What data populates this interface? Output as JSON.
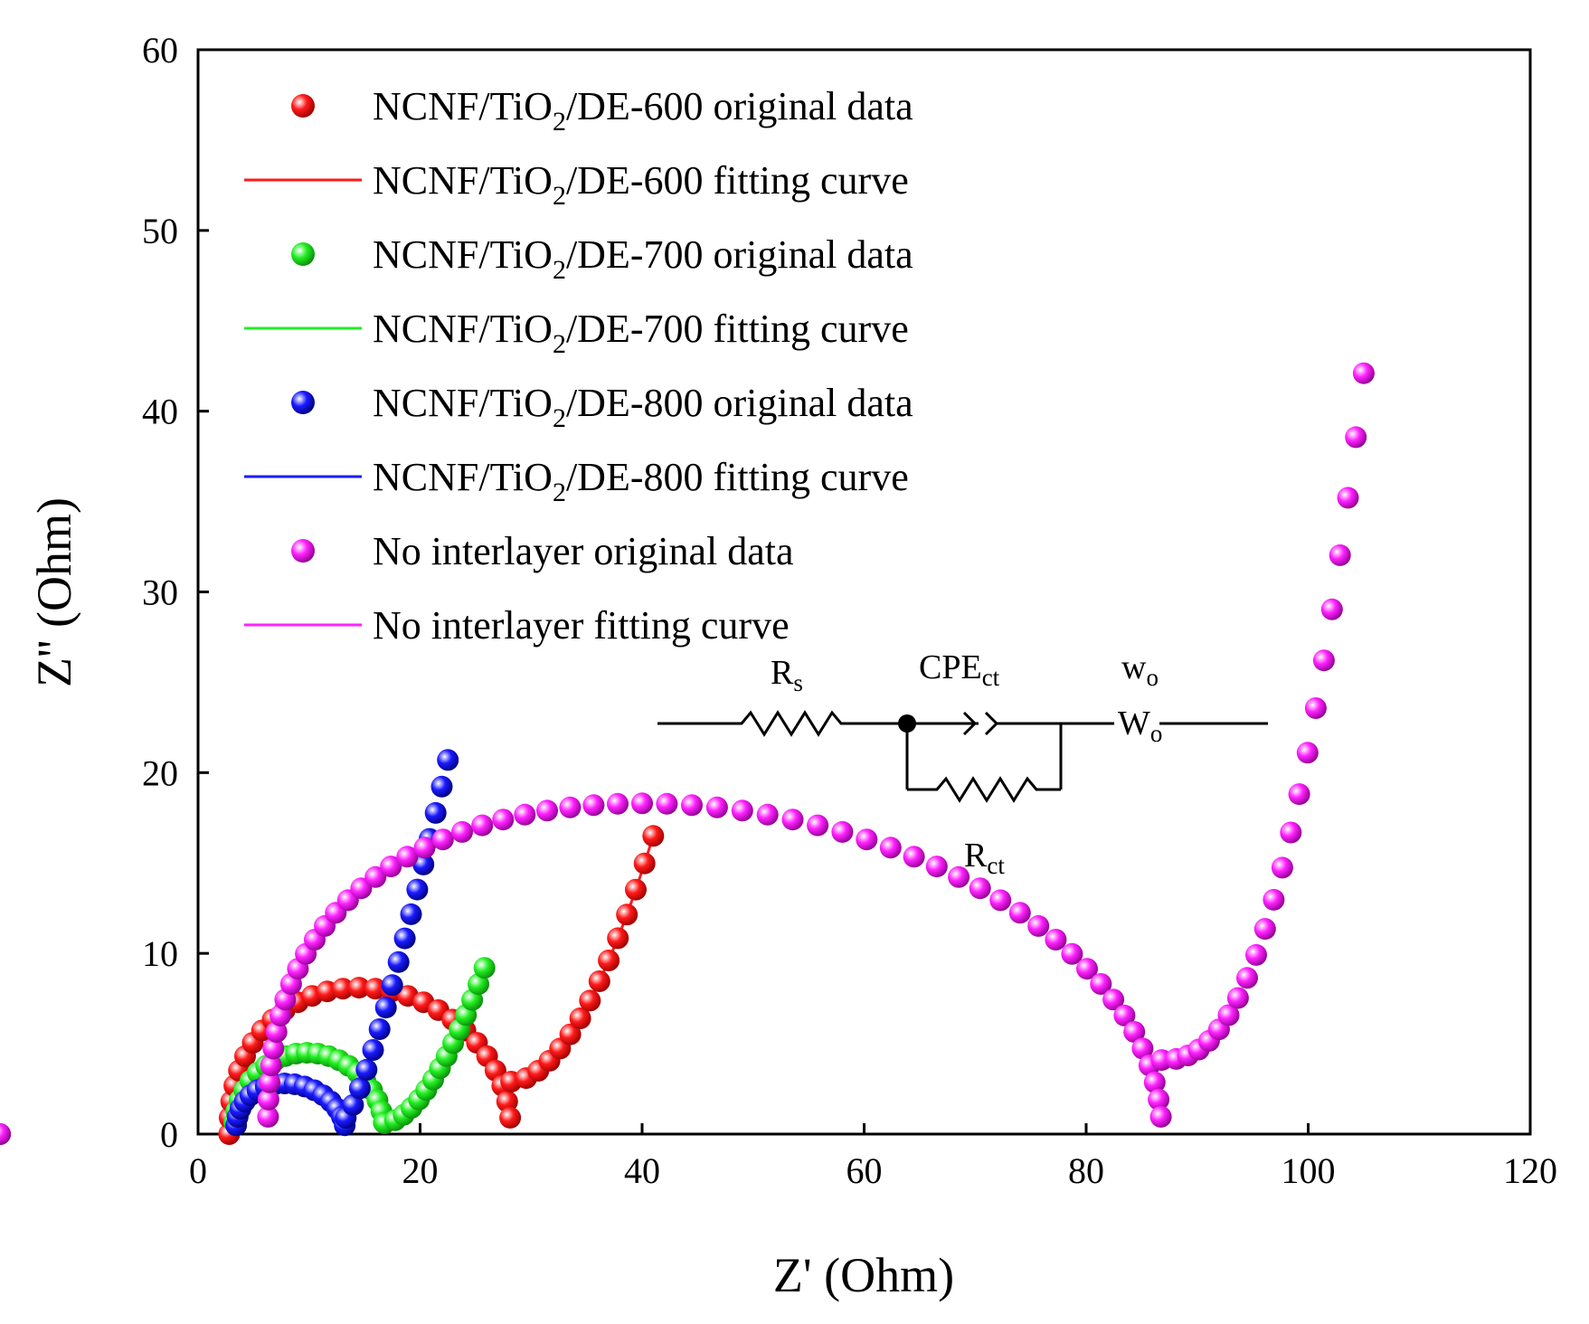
{
  "chart_data": {
    "type": "scatter",
    "title": "",
    "xlabel": "Z' (Ohm)",
    "ylabel": "Z'' (Ohm)",
    "xlim": [
      0,
      120
    ],
    "ylim": [
      0,
      60
    ],
    "xticks": [
      0,
      20,
      40,
      60,
      80,
      100,
      120
    ],
    "yticks": [
      0,
      10,
      20,
      30,
      40,
      50,
      60
    ],
    "xtick_labels": [
      "0",
      "20",
      "40",
      "60",
      "80",
      "100",
      "120"
    ],
    "ytick_labels": [
      "0",
      "10",
      "20",
      "30",
      "40",
      "50",
      "60"
    ],
    "grid": false,
    "legend_position": "top-left",
    "legend": [
      {
        "pre": "NCNF/TiO",
        "sub": "2",
        "post": "/DE-600 original data",
        "kind": "marker",
        "color": "#ff1a1a"
      },
      {
        "pre": "NCNF/TiO",
        "sub": "2",
        "post": "/DE-600 fitting curve",
        "kind": "line",
        "color": "#ff1a1a"
      },
      {
        "pre": "NCNF/TiO",
        "sub": "2",
        "post": "/DE-700 original data",
        "kind": "marker",
        "color": "#22ee22"
      },
      {
        "pre": "NCNF/TiO",
        "sub": "2",
        "post": "/DE-700 fitting curve",
        "kind": "line",
        "color": "#22ee22"
      },
      {
        "pre": "NCNF/TiO",
        "sub": "2",
        "post": "/DE-800 original data",
        "kind": "marker",
        "color": "#1a1aff"
      },
      {
        "pre": "NCNF/TiO",
        "sub": "2",
        "post": "/DE-800 fitting curve",
        "kind": "line",
        "color": "#1a1aff"
      },
      {
        "pre": "No interlayer original data",
        "sub": "",
        "post": "",
        "kind": "marker",
        "color": "#ff22ff"
      },
      {
        "pre": "No interlayer fitting curve",
        "sub": "",
        "post": "",
        "kind": "line",
        "color": "#ff22ff"
      }
    ],
    "circuit": {
      "rs_main": "R",
      "rs_sub": "s",
      "cpe_main": "CPE",
      "cpe_sub": "ct",
      "wo_top_main": "w",
      "wo_top_sub": "o",
      "wo_mid_main": "W",
      "wo_mid_sub": "o",
      "rct_main": "R",
      "rct_sub": "ct"
    },
    "series": [
      {
        "name": "NCNF/TiO2/DE-600",
        "color": "#ff1a1a",
        "semicircle": {
          "x_start": 2.8,
          "x_end": 28.2,
          "y_peak": 8.1,
          "x_peak": 14.5,
          "sharpness": 1.0
        },
        "n_arc": 28,
        "tail": {
          "x0": 28.2,
          "y0": 2.9,
          "x1": 41.0,
          "y1": 16.5,
          "curvature": 1.6
        },
        "n_tail": 14
      },
      {
        "name": "NCNF/TiO2/DE-700",
        "color": "#22ee22",
        "semicircle": {
          "x_start": 3.2,
          "x_end": 16.8,
          "y_peak": 4.5,
          "x_peak": 9.8,
          "sharpness": 1.0
        },
        "n_arc": 22,
        "tail": {
          "x0": 16.8,
          "y0": 0.6,
          "x1": 25.8,
          "y1": 9.2,
          "curvature": 1.5
        },
        "n_tail": 14
      },
      {
        "name": "NCNF/TiO2/DE-800",
        "color": "#1a1aff",
        "semicircle": {
          "x_start": 3.4,
          "x_end": 13.3,
          "y_peak": 2.8,
          "x_peak": 7.8,
          "sharpness": 1.0
        },
        "n_arc": 18,
        "tail": {
          "x0": 13.3,
          "y0": 0.9,
          "x1": 22.5,
          "y1": 20.7,
          "curvature": 1.2
        },
        "n_tail": 16
      },
      {
        "name": "No interlayer",
        "color": "#ff22ff",
        "semicircle": {
          "x_start": 6.3,
          "x_end": 86.8,
          "y_peak": 18.3,
          "x_peak": 40.0,
          "sharpness": 1.0
        },
        "n_arc": 60,
        "tail": {
          "x0": 86.8,
          "y0": 4.1,
          "x1": 105.0,
          "y1": 42.1,
          "curvature": 2.1
        },
        "n_tail": 22
      }
    ]
  }
}
